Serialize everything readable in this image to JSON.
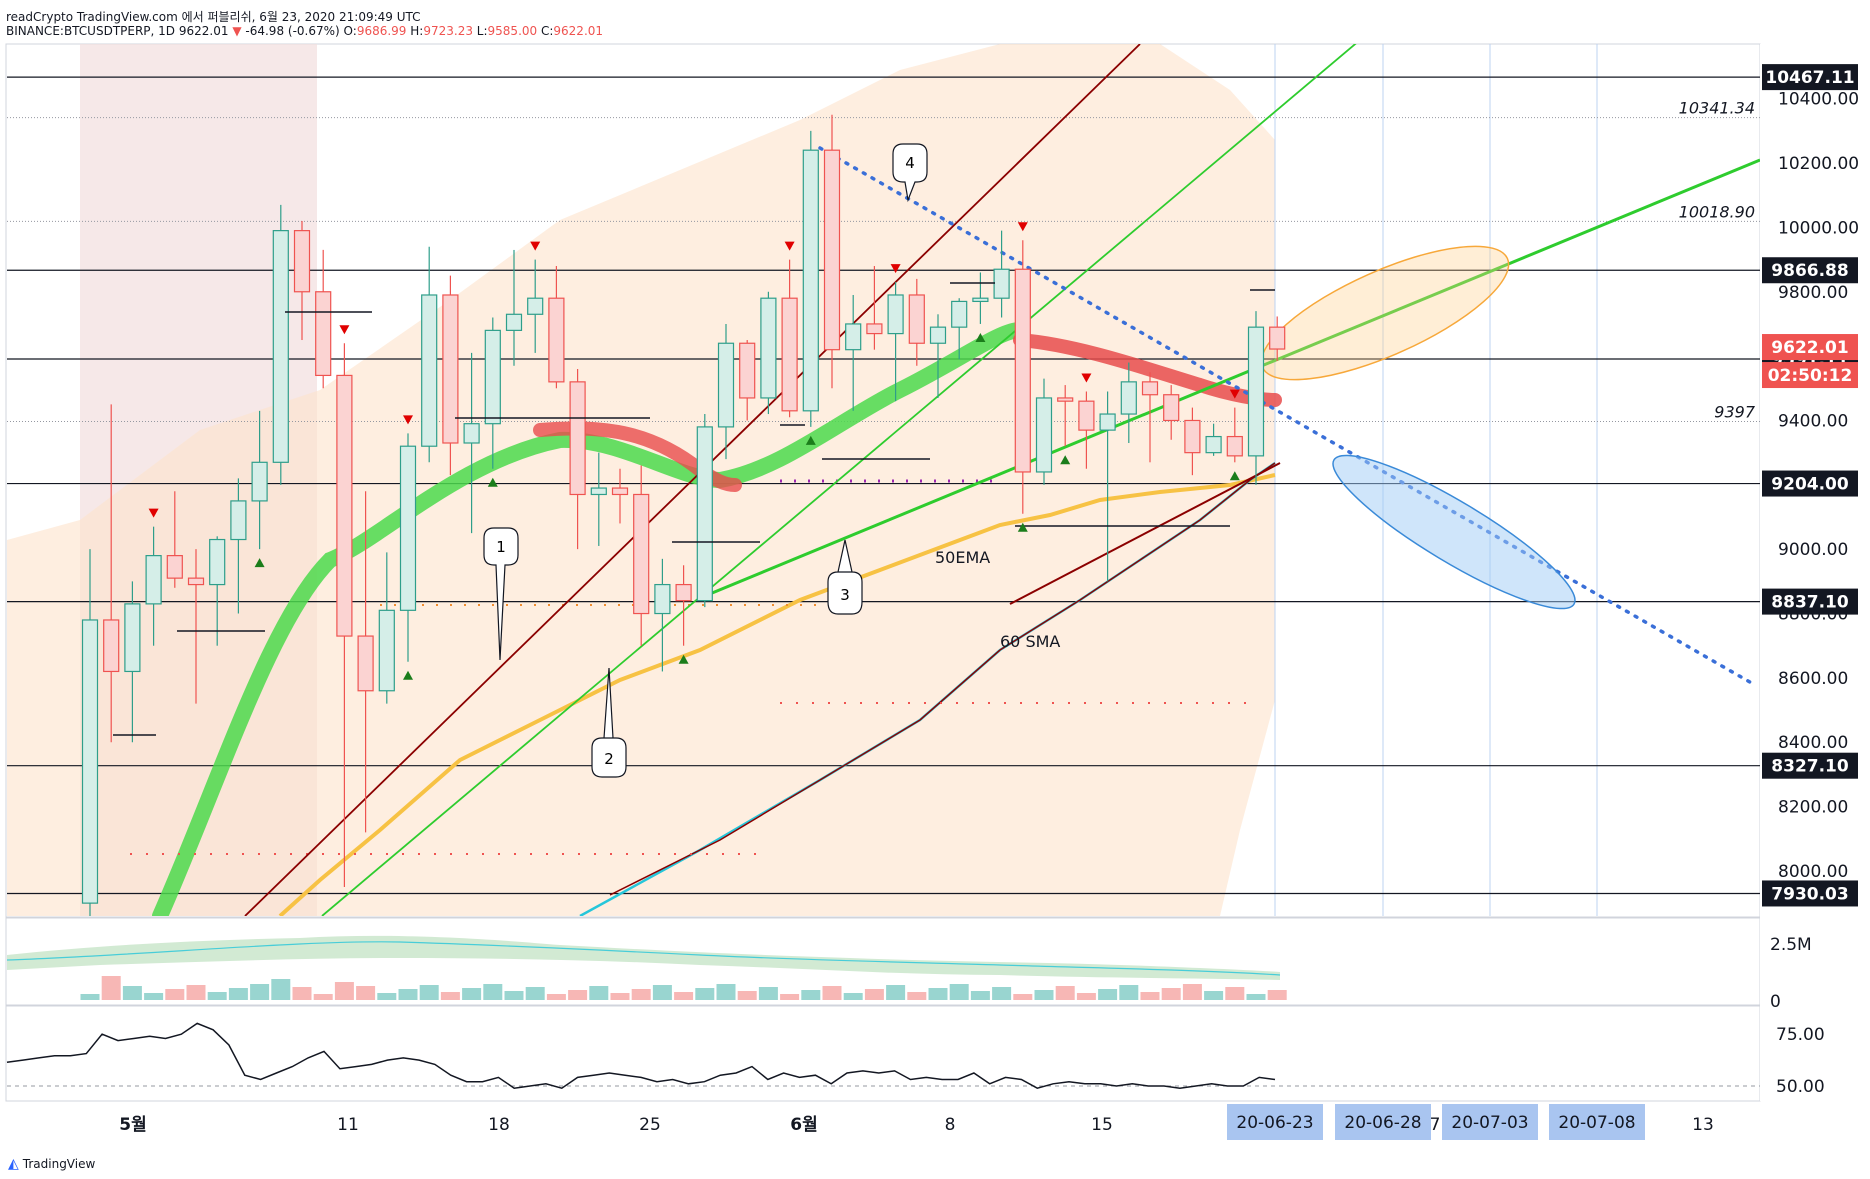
{
  "header": {
    "line1": "readCrypto TradingView.com 에서 퍼블리쉬, 6월 23, 2020 21:09:49 UTC",
    "symbol": "BINANCE:BTCUSDTPERP, 1D",
    "last": "9622.01",
    "change": "-64.98 (-0.67%)",
    "open_label": "O:",
    "open": "9686.99",
    "high_label": "H:",
    "high": "9723.23",
    "low_label": "L:",
    "low": "9585.00",
    "close_label": "C:",
    "close": "9622.01"
  },
  "footer": {
    "brand": "TradingView"
  },
  "colors": {
    "up": "#2e9e8a",
    "down": "#ef5350",
    "ema": "#f7c244",
    "sma_teal": "#26c6da",
    "sma_dark": "#8b0000",
    "trend_green": "#2ecc2e",
    "badge_dark": "#131722",
    "badge_red": "#ef5350",
    "date_badge": "#a9c5f0"
  },
  "chart_data": {
    "type": "candlestick",
    "price_axis": {
      "range": [
        7860,
        10570
      ],
      "ticks": [
        "8000.00",
        "8200.00",
        "8400.00",
        "8600.00",
        "8800.00",
        "9000.00",
        "9200.00",
        "9400.00",
        "9600.00",
        "9800.00",
        "10000.00",
        "10200.00",
        "10400.00"
      ]
    },
    "level_badges": [
      {
        "label": "10467.11",
        "value": 10467.11
      },
      {
        "label": "9866.88",
        "value": 9866.88
      },
      {
        "label": "9591.11",
        "value": 9591.11
      },
      {
        "label": "9204.00",
        "value": 9204.0
      },
      {
        "label": "8837.10",
        "value": 8837.1
      },
      {
        "label": "8327.10",
        "value": 8327.1
      },
      {
        "label": "7930.03",
        "value": 7930.03
      }
    ],
    "last_price_badge": {
      "label": "9622.01",
      "value": 9622.01
    },
    "countdown_badge": {
      "label": "02:50:12"
    },
    "dotted_levels": [
      {
        "label": "10341.34",
        "value": 10341.34
      },
      {
        "label": "10018.90",
        "value": 10018.9
      },
      {
        "label": "9397",
        "value": 9397
      }
    ],
    "x_axis_labels": [
      "5월",
      "11",
      "18",
      "25",
      "6월",
      "8",
      "15",
      "7",
      "13"
    ],
    "date_badges": [
      "20-06-23",
      "20-06-28",
      "20-07-03",
      "20-07-08"
    ],
    "candles": [
      {
        "o": 7900,
        "h": 9000,
        "l": 7700,
        "c": 8780
      },
      {
        "o": 8780,
        "h": 9450,
        "l": 8400,
        "c": 8620
      },
      {
        "o": 8620,
        "h": 8900,
        "l": 8400,
        "c": 8830
      },
      {
        "o": 8830,
        "h": 9070,
        "l": 8700,
        "c": 8980
      },
      {
        "o": 8980,
        "h": 9180,
        "l": 8880,
        "c": 8910
      },
      {
        "o": 8910,
        "h": 9000,
        "l": 8520,
        "c": 8890
      },
      {
        "o": 8890,
        "h": 9040,
        "l": 8700,
        "c": 9030
      },
      {
        "o": 9030,
        "h": 9220,
        "l": 8800,
        "c": 9150
      },
      {
        "o": 9150,
        "h": 9430,
        "l": 9000,
        "c": 9270
      },
      {
        "o": 9270,
        "h": 10070,
        "l": 9200,
        "c": 9990
      },
      {
        "o": 9990,
        "h": 10020,
        "l": 9650,
        "c": 9800
      },
      {
        "o": 9800,
        "h": 9930,
        "l": 9500,
        "c": 9540
      },
      {
        "o": 9540,
        "h": 9640,
        "l": 7950,
        "c": 8730
      },
      {
        "o": 8730,
        "h": 9180,
        "l": 8120,
        "c": 8560
      },
      {
        "o": 8560,
        "h": 8990,
        "l": 8520,
        "c": 8810
      },
      {
        "o": 8810,
        "h": 9360,
        "l": 8650,
        "c": 9320
      },
      {
        "o": 9320,
        "h": 9940,
        "l": 9270,
        "c": 9790
      },
      {
        "o": 9790,
        "h": 9850,
        "l": 9230,
        "c": 9330
      },
      {
        "o": 9330,
        "h": 9610,
        "l": 9050,
        "c": 9390
      },
      {
        "o": 9390,
        "h": 9720,
        "l": 9250,
        "c": 9680
      },
      {
        "o": 9680,
        "h": 9930,
        "l": 9570,
        "c": 9730
      },
      {
        "o": 9730,
        "h": 9900,
        "l": 9610,
        "c": 9780
      },
      {
        "o": 9780,
        "h": 9880,
        "l": 9500,
        "c": 9520
      },
      {
        "o": 9520,
        "h": 9560,
        "l": 9000,
        "c": 9170
      },
      {
        "o": 9170,
        "h": 9300,
        "l": 9010,
        "c": 9190
      },
      {
        "o": 9190,
        "h": 9250,
        "l": 9080,
        "c": 9170
      },
      {
        "o": 9170,
        "h": 9260,
        "l": 8700,
        "c": 8800
      },
      {
        "o": 8800,
        "h": 8970,
        "l": 8620,
        "c": 8890
      },
      {
        "o": 8890,
        "h": 8950,
        "l": 8700,
        "c": 8840
      },
      {
        "o": 8840,
        "h": 9420,
        "l": 8820,
        "c": 9380
      },
      {
        "o": 9380,
        "h": 9700,
        "l": 9280,
        "c": 9640
      },
      {
        "o": 9640,
        "h": 9650,
        "l": 9400,
        "c": 9470
      },
      {
        "o": 9470,
        "h": 9800,
        "l": 9420,
        "c": 9780
      },
      {
        "o": 9780,
        "h": 9900,
        "l": 9410,
        "c": 9430
      },
      {
        "o": 9430,
        "h": 10300,
        "l": 9380,
        "c": 10240
      },
      {
        "o": 10240,
        "h": 10350,
        "l": 9500,
        "c": 9620
      },
      {
        "o": 9620,
        "h": 9790,
        "l": 9430,
        "c": 9700
      },
      {
        "o": 9700,
        "h": 9880,
        "l": 9620,
        "c": 9670
      },
      {
        "o": 9670,
        "h": 9830,
        "l": 9460,
        "c": 9790
      },
      {
        "o": 9790,
        "h": 9840,
        "l": 9570,
        "c": 9640
      },
      {
        "o": 9640,
        "h": 9730,
        "l": 9470,
        "c": 9690
      },
      {
        "o": 9690,
        "h": 9780,
        "l": 9590,
        "c": 9770
      },
      {
        "o": 9770,
        "h": 9860,
        "l": 9700,
        "c": 9780
      },
      {
        "o": 9780,
        "h": 9990,
        "l": 9720,
        "c": 9870
      },
      {
        "o": 9870,
        "h": 9960,
        "l": 9110,
        "c": 9240
      },
      {
        "o": 9240,
        "h": 9530,
        "l": 9200,
        "c": 9470
      },
      {
        "o": 9470,
        "h": 9510,
        "l": 9320,
        "c": 9460
      },
      {
        "o": 9460,
        "h": 9490,
        "l": 9250,
        "c": 9370
      },
      {
        "o": 9370,
        "h": 9490,
        "l": 8900,
        "c": 9420
      },
      {
        "o": 9420,
        "h": 9580,
        "l": 9330,
        "c": 9520
      },
      {
        "o": 9520,
        "h": 9550,
        "l": 9270,
        "c": 9480
      },
      {
        "o": 9480,
        "h": 9510,
        "l": 9340,
        "c": 9400
      },
      {
        "o": 9400,
        "h": 9440,
        "l": 9230,
        "c": 9300
      },
      {
        "o": 9300,
        "h": 9390,
        "l": 9290,
        "c": 9350
      },
      {
        "o": 9350,
        "h": 9440,
        "l": 9270,
        "c": 9290
      },
      {
        "o": 9290,
        "h": 9740,
        "l": 9200,
        "c": 9690
      },
      {
        "o": 9690,
        "h": 9723.23,
        "l": 9585,
        "c": 9622.01
      }
    ],
    "annotations": [
      {
        "label": "1"
      },
      {
        "label": "2"
      },
      {
        "label": "3"
      },
      {
        "label": "4"
      },
      {
        "label": "50EMA"
      },
      {
        "label": "60 SMA"
      }
    ],
    "volume_axis": {
      "ticks": [
        "2.5M",
        "0"
      ]
    },
    "rsi_axis": {
      "ticks": [
        "75.00",
        "50.00"
      ]
    },
    "rsi": [
      61,
      62,
      63,
      64,
      64,
      65,
      74,
      71,
      72,
      73,
      72,
      74,
      79,
      76,
      69,
      55,
      53,
      56,
      59,
      63,
      66,
      58,
      59,
      60,
      62,
      63,
      62,
      60,
      55,
      52,
      52,
      54,
      49,
      50,
      51,
      49,
      54,
      55,
      56,
      55,
      54,
      52,
      53,
      51,
      52,
      55,
      56,
      59,
      53,
      56,
      54,
      55,
      51,
      56,
      57,
      56,
      57,
      53,
      54,
      53,
      53,
      56,
      51,
      54,
      53,
      49,
      51,
      52,
      51,
      51,
      50,
      51,
      50,
      50,
      49,
      50,
      51,
      50,
      50,
      54,
      53
    ]
  }
}
